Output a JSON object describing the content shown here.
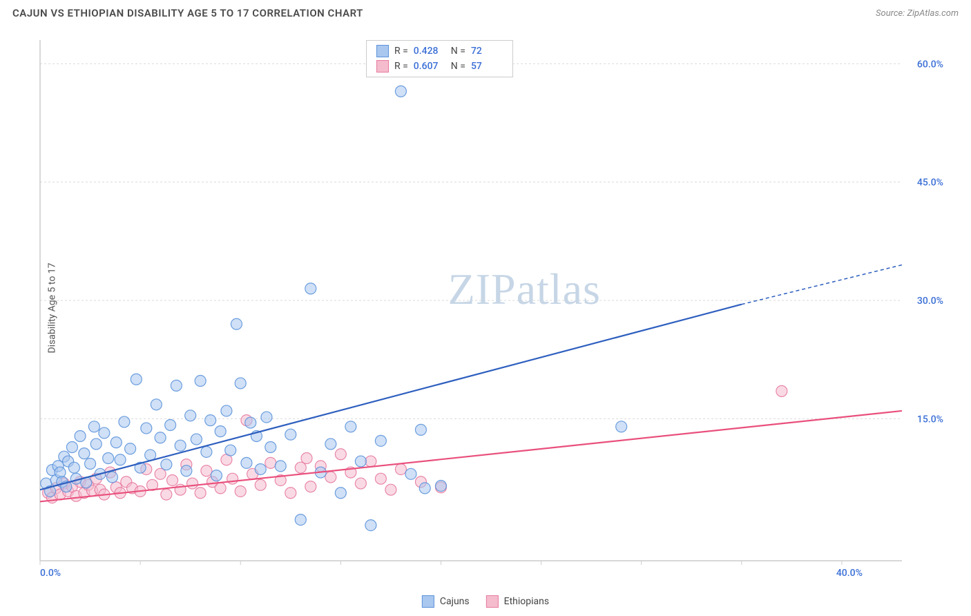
{
  "title": "CAJUN VS ETHIOPIAN DISABILITY AGE 5 TO 17 CORRELATION CHART",
  "source_label": "Source:",
  "source_name": "ZipAtlas.com",
  "ylabel": "Disability Age 5 to 17",
  "watermark_a": "ZIP",
  "watermark_b": "atlas",
  "chart": {
    "type": "scatter",
    "xlim": [
      0,
      43
    ],
    "ylim": [
      -3,
      63
    ],
    "x_ticks": [
      0,
      5,
      10,
      15,
      20,
      25,
      30,
      35,
      40
    ],
    "x_tick_labels": {
      "0": "0.0%",
      "40": "40.0%"
    },
    "y_ticks_major": [
      0,
      15,
      30,
      45,
      60
    ],
    "y_tick_labels": {
      "15": "15.0%",
      "30": "30.0%",
      "45": "45.0%",
      "60": "60.0%"
    },
    "background_color": "#ffffff",
    "grid_color": "#d9d9d9",
    "grid_dash": "3,3",
    "axis_color": "#cccccc",
    "tick_label_color": "#3b6fd6",
    "marker_radius": 8,
    "marker_opacity": 0.55,
    "marker_stroke_opacity": 0.9,
    "trend_line_width": 2.2,
    "series": [
      {
        "name": "Cajuns",
        "fill": "#a9c7ef",
        "stroke": "#5c93db",
        "line_color": "#2e5fbf",
        "R": "0.428",
        "N": "72",
        "points": [
          [
            0.3,
            6.8
          ],
          [
            0.5,
            5.8
          ],
          [
            0.6,
            8.5
          ],
          [
            0.8,
            7.2
          ],
          [
            0.9,
            9.0
          ],
          [
            1.0,
            8.2
          ],
          [
            1.1,
            7.0
          ],
          [
            1.2,
            10.2
          ],
          [
            1.3,
            6.4
          ],
          [
            1.4,
            9.6
          ],
          [
            1.6,
            11.4
          ],
          [
            1.7,
            8.8
          ],
          [
            1.8,
            7.4
          ],
          [
            2.0,
            12.8
          ],
          [
            2.2,
            10.6
          ],
          [
            2.3,
            6.9
          ],
          [
            2.5,
            9.3
          ],
          [
            2.7,
            14.0
          ],
          [
            2.8,
            11.8
          ],
          [
            3.0,
            8.0
          ],
          [
            3.2,
            13.2
          ],
          [
            3.4,
            10.0
          ],
          [
            3.6,
            7.6
          ],
          [
            3.8,
            12.0
          ],
          [
            4.0,
            9.8
          ],
          [
            4.2,
            14.6
          ],
          [
            4.5,
            11.2
          ],
          [
            4.8,
            20.0
          ],
          [
            5.0,
            8.8
          ],
          [
            5.3,
            13.8
          ],
          [
            5.5,
            10.4
          ],
          [
            5.8,
            16.8
          ],
          [
            6.0,
            12.6
          ],
          [
            6.3,
            9.2
          ],
          [
            6.5,
            14.2
          ],
          [
            6.8,
            19.2
          ],
          [
            7.0,
            11.6
          ],
          [
            7.3,
            8.4
          ],
          [
            7.5,
            15.4
          ],
          [
            7.8,
            12.4
          ],
          [
            8.0,
            19.8
          ],
          [
            8.3,
            10.8
          ],
          [
            8.5,
            14.8
          ],
          [
            8.8,
            7.8
          ],
          [
            9.0,
            13.4
          ],
          [
            9.3,
            16.0
          ],
          [
            9.5,
            11.0
          ],
          [
            9.8,
            27.0
          ],
          [
            10.0,
            19.5
          ],
          [
            10.3,
            9.4
          ],
          [
            10.5,
            14.5
          ],
          [
            10.8,
            12.8
          ],
          [
            11.0,
            8.6
          ],
          [
            11.3,
            15.2
          ],
          [
            11.5,
            11.4
          ],
          [
            12.0,
            9.0
          ],
          [
            12.5,
            13.0
          ],
          [
            13.0,
            2.2
          ],
          [
            13.5,
            31.5
          ],
          [
            14.0,
            8.2
          ],
          [
            14.5,
            11.8
          ],
          [
            15.0,
            5.6
          ],
          [
            15.5,
            14.0
          ],
          [
            16.0,
            9.6
          ],
          [
            16.5,
            1.5
          ],
          [
            17.0,
            12.2
          ],
          [
            18.0,
            56.5
          ],
          [
            18.5,
            8.0
          ],
          [
            19.0,
            13.6
          ],
          [
            20.0,
            6.5
          ],
          [
            29.0,
            14.0
          ],
          [
            19.2,
            6.2
          ]
        ],
        "trend": {
          "x1": 0,
          "y1": 6.0,
          "x2": 35,
          "y2": 29.5,
          "x2_dash": 43,
          "y2_dash": 34.5
        }
      },
      {
        "name": "Ethiopians",
        "fill": "#f4bccd",
        "stroke": "#e77aa0",
        "line_color": "#e94f7c",
        "R": "0.607",
        "N": "57",
        "points": [
          [
            0.4,
            5.6
          ],
          [
            0.6,
            5.0
          ],
          [
            0.8,
            6.2
          ],
          [
            1.0,
            5.4
          ],
          [
            1.2,
            6.8
          ],
          [
            1.4,
            5.8
          ],
          [
            1.6,
            6.4
          ],
          [
            1.8,
            5.2
          ],
          [
            2.0,
            7.0
          ],
          [
            2.2,
            5.6
          ],
          [
            2.4,
            6.6
          ],
          [
            2.6,
            5.9
          ],
          [
            2.8,
            7.4
          ],
          [
            3.0,
            6.0
          ],
          [
            3.2,
            5.4
          ],
          [
            3.5,
            8.2
          ],
          [
            3.8,
            6.3
          ],
          [
            4.0,
            5.6
          ],
          [
            4.3,
            7.0
          ],
          [
            4.6,
            6.2
          ],
          [
            5.0,
            5.8
          ],
          [
            5.3,
            8.6
          ],
          [
            5.6,
            6.6
          ],
          [
            6.0,
            8.0
          ],
          [
            6.3,
            5.4
          ],
          [
            6.6,
            7.2
          ],
          [
            7.0,
            6.0
          ],
          [
            7.3,
            9.2
          ],
          [
            7.6,
            6.8
          ],
          [
            8.0,
            5.6
          ],
          [
            8.3,
            8.4
          ],
          [
            8.6,
            7.0
          ],
          [
            9.0,
            6.2
          ],
          [
            9.3,
            9.8
          ],
          [
            9.6,
            7.4
          ],
          [
            10.0,
            5.8
          ],
          [
            10.3,
            14.8
          ],
          [
            10.6,
            8.0
          ],
          [
            11.0,
            6.6
          ],
          [
            11.5,
            9.4
          ],
          [
            12.0,
            7.2
          ],
          [
            12.5,
            5.6
          ],
          [
            13.0,
            8.8
          ],
          [
            13.3,
            10.0
          ],
          [
            13.5,
            6.4
          ],
          [
            14.0,
            9.0
          ],
          [
            14.5,
            7.6
          ],
          [
            15.0,
            10.5
          ],
          [
            15.5,
            8.2
          ],
          [
            16.0,
            6.8
          ],
          [
            16.5,
            9.6
          ],
          [
            17.0,
            7.4
          ],
          [
            17.5,
            6.0
          ],
          [
            18.0,
            8.6
          ],
          [
            19.0,
            7.0
          ],
          [
            20.0,
            6.3
          ],
          [
            37.0,
            18.5
          ]
        ],
        "trend": {
          "x1": 0,
          "y1": 4.5,
          "x2": 43,
          "y2": 16.0
        }
      }
    ]
  },
  "legend_top": {
    "r_label": "R =",
    "n_label": "N ="
  },
  "legend_bottom": {
    "items": [
      "Cajuns",
      "Ethiopians"
    ]
  }
}
